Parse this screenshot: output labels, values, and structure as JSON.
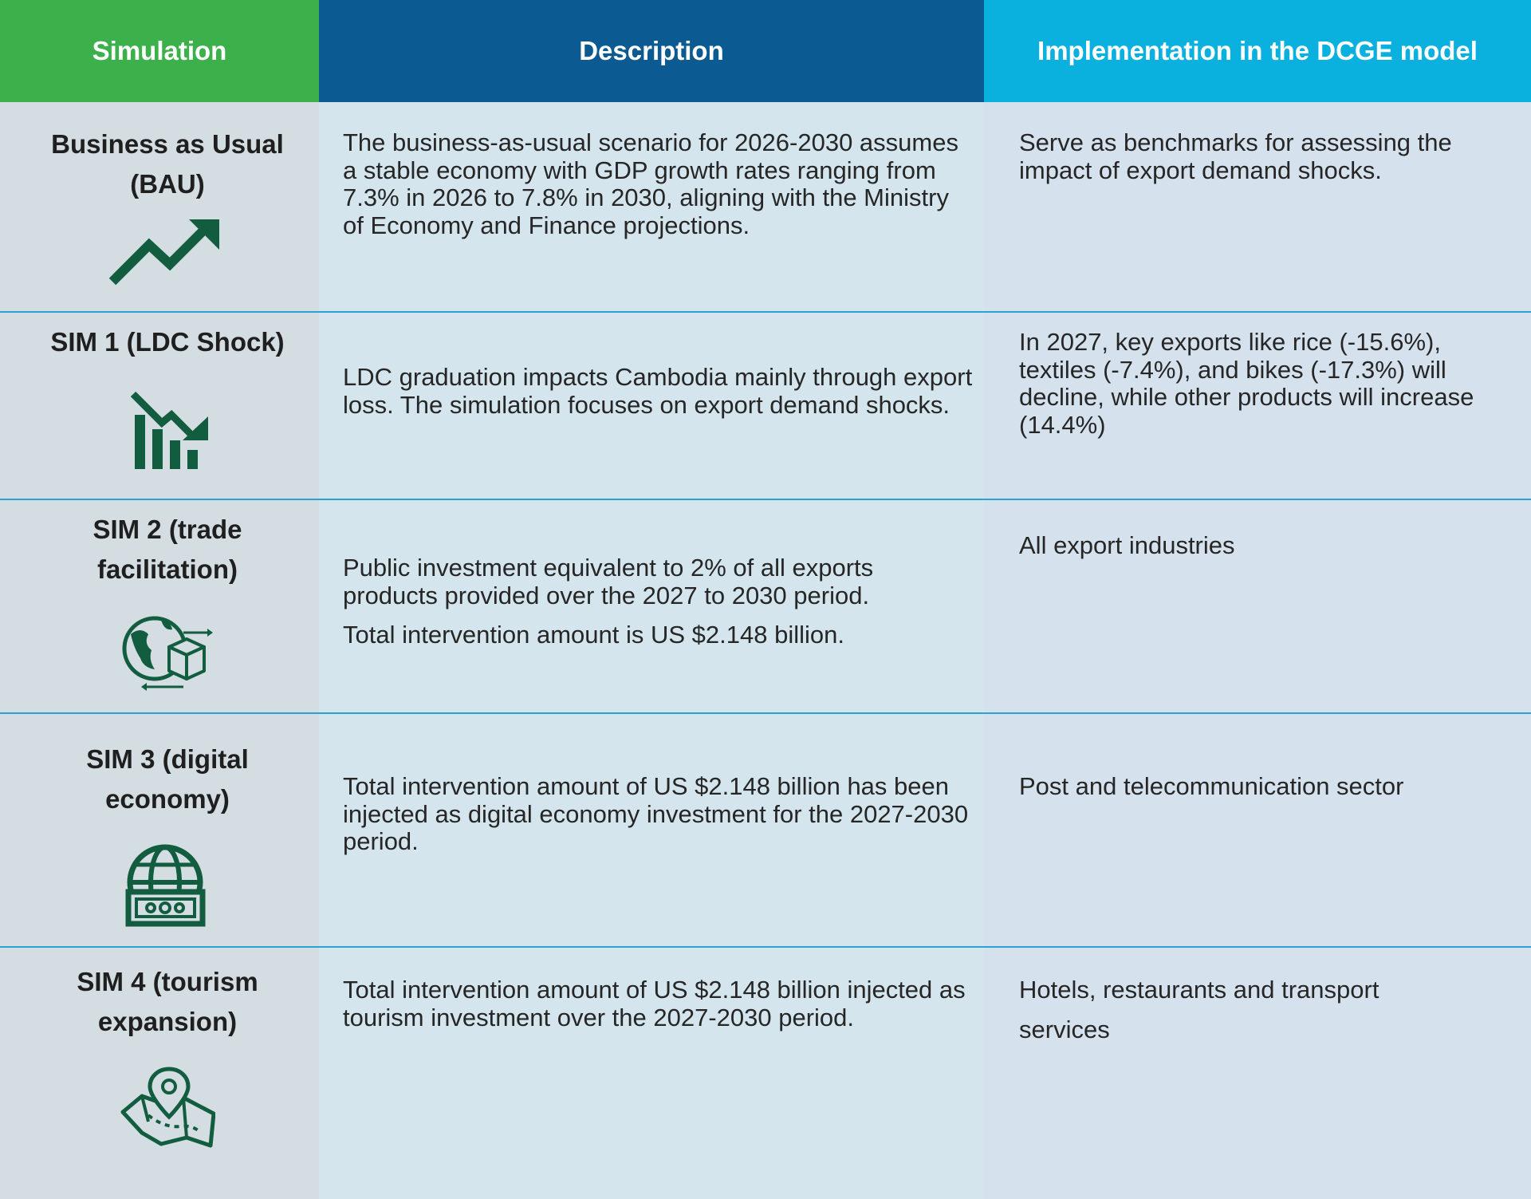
{
  "header": {
    "simulation": "Simulation",
    "description": "Description",
    "implementation": "Implementation in the DCGE model"
  },
  "rows": [
    {
      "title_line1": "Business as Usual",
      "title_line2": "(BAU)",
      "icon": "trending-up-arrow-icon",
      "description": "The business-as-usual scenario for 2026-2030 assumes a stable economy with GDP growth rates ranging from 7.3% in 2026 to 7.8% in 2030, aligning with the Ministry of Economy and Finance projections.",
      "implementation": "Serve as benchmarks for assessing the impact of export demand shocks."
    },
    {
      "title_line1": "SIM 1 (LDC Shock)",
      "icon": "declining-bar-chart-icon",
      "description": "LDC graduation impacts Cambodia mainly through export loss. The simulation focuses on export demand shocks.",
      "implementation": "In 2027, key exports like rice (-15.6%), textiles (-7.4%), and bikes (-17.3%) will decline, while other products will increase (14.4%)"
    },
    {
      "title_line1": "SIM 2 (trade",
      "title_line2": "facilitation)",
      "icon": "globe-package-exchange-icon",
      "description": "Public investment equivalent to 2% of all exports products provided over the 2027 to 2030 period.",
      "description_2": "Total intervention amount is US $2.148 billion.",
      "implementation": "All export industries"
    },
    {
      "title_line1": "SIM 3 (digital",
      "title_line2": "economy)",
      "icon": "globe-money-icon",
      "description": "Total intervention amount of US $2.148 billion has been injected as digital economy investment for the 2027-2030 period.",
      "implementation": "Post and telecommunication sector"
    },
    {
      "title_line1": "SIM 4 (tourism",
      "title_line2": "expansion)",
      "icon": "map-location-pin-icon",
      "description": "Total intervention amount of US $2.148 billion injected as tourism investment over the 2027-2030 period.",
      "implementation_line1": "Hotels, restaurants and transport",
      "implementation_line2": "services"
    }
  ],
  "colors": {
    "header_green": "#3bb04b",
    "header_navy": "#0b5a92",
    "header_cyan": "#0ab1de",
    "icon_green": "#125c3f",
    "divider": "#2aa3d4"
  }
}
